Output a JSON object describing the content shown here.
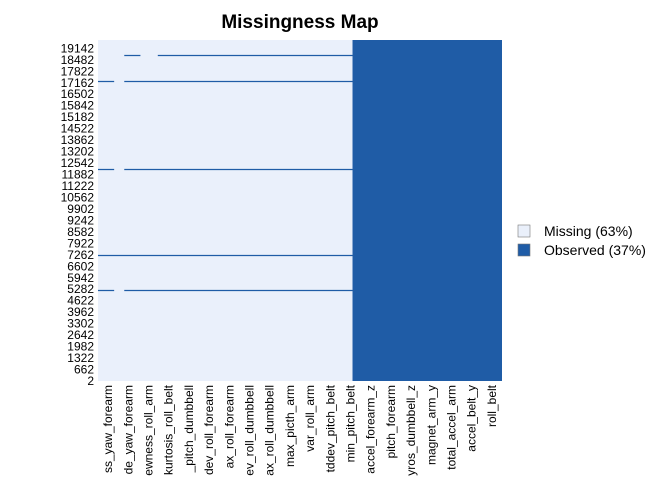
{
  "chart_data": {
    "type": "heatmap",
    "title": "Missingness Map",
    "colors": {
      "missing": "#eaf0fb",
      "observed": "#1f5ca6"
    },
    "legend": {
      "placement": "right",
      "entries": [
        {
          "key": "missing",
          "label": "Missing (63%)"
        },
        {
          "key": "observed",
          "label": "Observed (37%)"
        }
      ]
    },
    "y_tick_labels": [
      "2",
      "662",
      "1322",
      "1982",
      "2642",
      "3302",
      "3962",
      "4622",
      "5282",
      "5942",
      "6602",
      "7262",
      "7922",
      "8582",
      "9242",
      "9902",
      "10562",
      "11222",
      "11882",
      "12542",
      "13202",
      "13862",
      "14522",
      "15182",
      "15842",
      "16502",
      "17162",
      "17822",
      "18482",
      "19142"
    ],
    "y_range": [
      2,
      19622
    ],
    "x_tick_labels": [
      "ss_yaw_forearm",
      "de_yaw_forearm",
      "ewness_roll_arm",
      "kurtosis_roll_belt",
      "_pitch_dumbbell",
      "dev_roll_forearm",
      "ax_roll_forearm",
      "ev_roll_dumbbell",
      "ax_roll_dumbbell",
      "max_picth_arm",
      "var_roll_arm",
      "tddev_pitch_belt",
      "min_pitch_belt",
      "accel_forearm_z",
      "pitch_forearm",
      "yros_dumbbell_z",
      "magnet_arm_y",
      "total_accel_arm",
      "accel_belt_y",
      "roll_belt"
    ],
    "columns_total": 160,
    "observed_start_fraction": 0.63,
    "observed_lines": [
      {
        "row": 18780,
        "x_fractions": [
          [
            0.065,
            0.105
          ],
          [
            0.148,
            0.63
          ]
        ]
      },
      {
        "row": 17250,
        "x_fractions": [
          [
            0.0,
            0.04
          ],
          [
            0.065,
            0.63
          ]
        ]
      },
      {
        "row": 12220,
        "x_fractions": [
          [
            0.0,
            0.04
          ],
          [
            0.065,
            0.63
          ]
        ]
      },
      {
        "row": 7262,
        "x_fractions": [
          [
            0.0,
            0.63
          ]
        ]
      },
      {
        "row": 5240,
        "x_fractions": [
          [
            0.0,
            0.04
          ],
          [
            0.065,
            0.63
          ]
        ]
      }
    ]
  }
}
